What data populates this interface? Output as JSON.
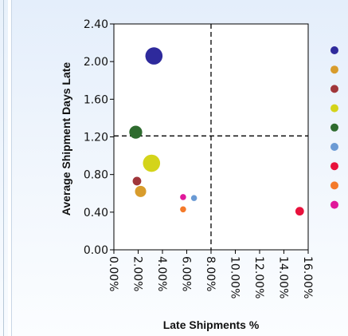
{
  "chart_data": {
    "type": "scatter",
    "title": "",
    "xlabel": "Late Shipments %",
    "ylabel": "Average Shipment Days Late",
    "xlim": [
      0,
      16
    ],
    "ylim": [
      0,
      2.4
    ],
    "x_ticks": [
      0,
      2,
      4,
      6,
      8,
      10,
      12,
      14,
      16
    ],
    "x_tick_labels": [
      "0.00%",
      "2.00%",
      "4.00%",
      "6.00%",
      "8.00%",
      "10.00%",
      "12.00%",
      "14.00%",
      "16.00%"
    ],
    "y_ticks": [
      0,
      0.4,
      0.8,
      1.2,
      1.6,
      2.0,
      2.4
    ],
    "y_tick_labels": [
      "0.00",
      "0.40",
      "0.80",
      "1.20",
      "1.60",
      "2.00",
      "2.40"
    ],
    "grid": false,
    "reference_lines": {
      "x": 8.0,
      "y": 1.21
    },
    "legend": {
      "placement": "right"
    },
    "series": [
      {
        "x": 3.3,
        "y": 2.06,
        "size": 2.0,
        "color": "#2e2a9c"
      },
      {
        "x": 2.2,
        "y": 0.62,
        "size": 1.3,
        "color": "#d89c2c"
      },
      {
        "x": 1.9,
        "y": 0.73,
        "size": 1.0,
        "color": "#a0363a"
      },
      {
        "x": 3.1,
        "y": 0.92,
        "size": 2.0,
        "color": "#d4d41a"
      },
      {
        "x": 1.8,
        "y": 1.25,
        "size": 1.5,
        "color": "#2e6b2e"
      },
      {
        "x": 6.6,
        "y": 0.55,
        "size": 0.7,
        "color": "#6a9ad4"
      },
      {
        "x": 15.3,
        "y": 0.41,
        "size": 1.0,
        "color": "#e8123c"
      },
      {
        "x": 5.7,
        "y": 0.43,
        "size": 0.7,
        "color": "#f47a2a"
      },
      {
        "x": 5.7,
        "y": 0.56,
        "size": 0.7,
        "color": "#e0189a"
      }
    ]
  }
}
